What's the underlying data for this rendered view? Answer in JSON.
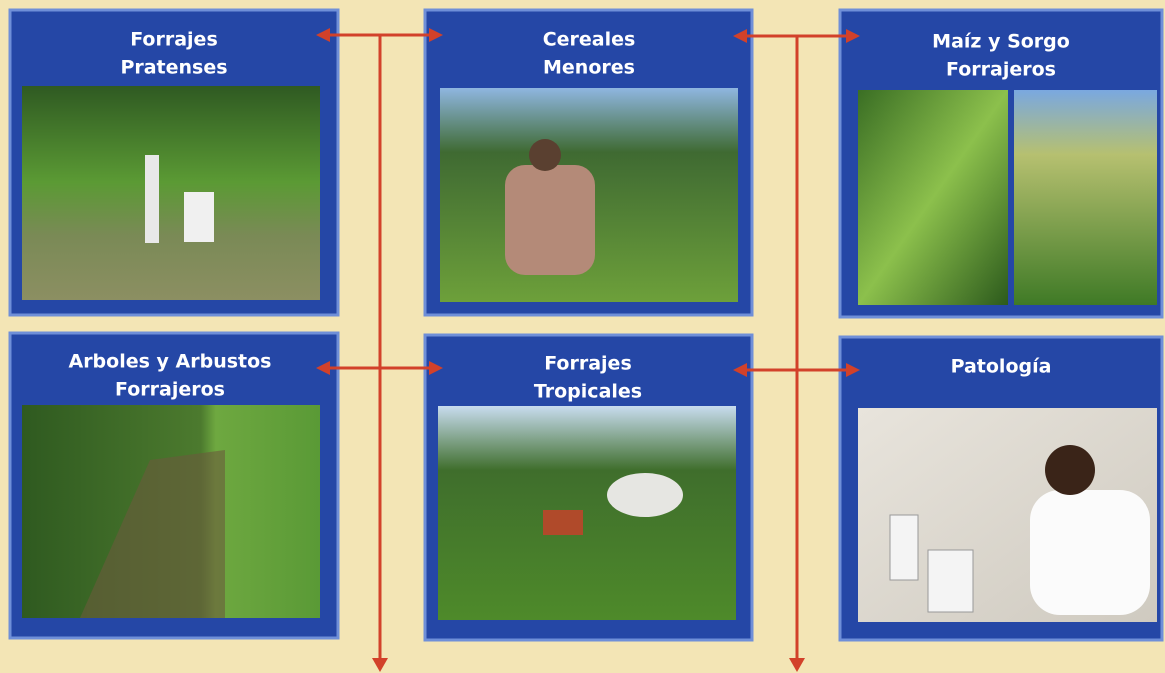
{
  "panels": [
    {
      "title_lines": [
        "Forrajes",
        "Pratenses"
      ]
    },
    {
      "title_lines": [
        "Cereales",
        "Menores"
      ]
    },
    {
      "title_lines": [
        "Maíz y Sorgo",
        "Forrajeros"
      ]
    },
    {
      "title_lines": [
        "Arboles y Arbustos",
        "Forrajeros"
      ]
    },
    {
      "title_lines": [
        "Forrajes",
        "Tropicales"
      ]
    },
    {
      "title_lines": [
        "Patología"
      ]
    }
  ]
}
